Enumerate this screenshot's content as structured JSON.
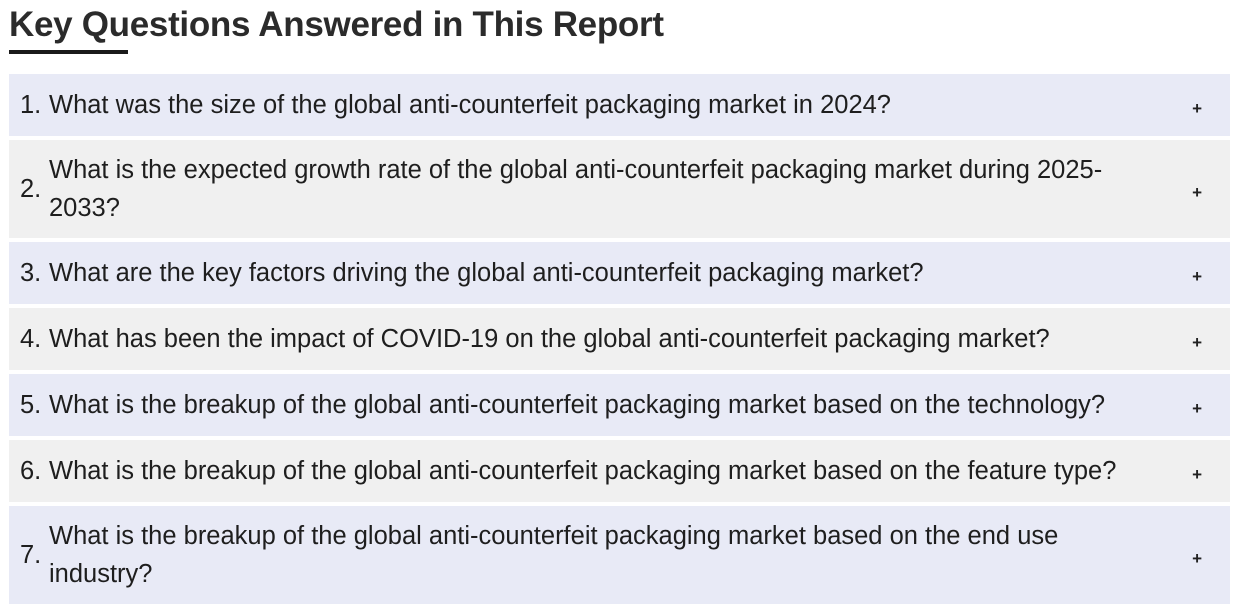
{
  "page": {
    "title": "Key Questions Answered in This Report"
  },
  "faq": {
    "items": [
      {
        "num": "1.",
        "question": "What was the size of the global anti-counterfeit packaging market in 2024?",
        "toggle": "+"
      },
      {
        "num": "2.",
        "question": "What is the expected growth rate of the global anti-counterfeit packaging market during 2025-2033?",
        "toggle": "+"
      },
      {
        "num": "3.",
        "question": "What are the key factors driving the global anti-counterfeit packaging market?",
        "toggle": "+"
      },
      {
        "num": "4.",
        "question": "What has been the impact of COVID-19 on the global anti-counterfeit packaging market?",
        "toggle": "+"
      },
      {
        "num": "5.",
        "question": "What is the breakup of the global anti-counterfeit packaging market based on the technology?",
        "toggle": "+"
      },
      {
        "num": "6.",
        "question": "What is the breakup of the global anti-counterfeit packaging market based on the feature type?",
        "toggle": "+"
      },
      {
        "num": "7.",
        "question": "What is the breakup of the global anti-counterfeit packaging market based on the end use industry?",
        "toggle": "+"
      }
    ]
  },
  "colors": {
    "row_blue": "#e8eaf6",
    "row_grey": "#f0f0f0",
    "text": "#1e1e1e",
    "underline": "#1a1a1a"
  }
}
